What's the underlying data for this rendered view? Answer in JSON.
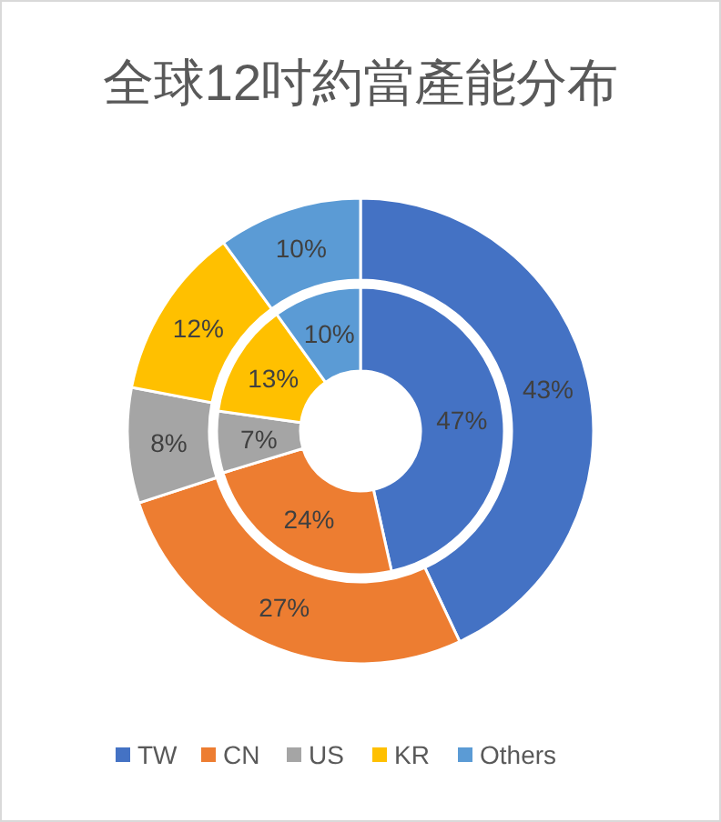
{
  "chart_data": {
    "type": "donut",
    "title": "全球12吋約當產能分布",
    "categories": [
      "TW",
      "CN",
      "US",
      "KR",
      "Others"
    ],
    "legend": "bottom",
    "series": [
      {
        "colors": [
          "#4472c4",
          "#ed7d31",
          "#a5a5a5",
          "#ffc000",
          "#5b9bd5"
        ],
        "values": [
          43,
          27,
          8,
          12,
          10
        ],
        "value_labels": [
          "43%",
          "27%",
          "8%",
          "12%",
          "10%"
        ]
      },
      {
        "colors": [
          "#4472c4",
          "#ed7d31",
          "#a5a5a5",
          "#ffc000",
          "#5b9bd5"
        ],
        "values": [
          47,
          24,
          7,
          13,
          10
        ],
        "value_labels": [
          "47%",
          "24%",
          "7%",
          "13%",
          "10%"
        ]
      }
    ]
  }
}
